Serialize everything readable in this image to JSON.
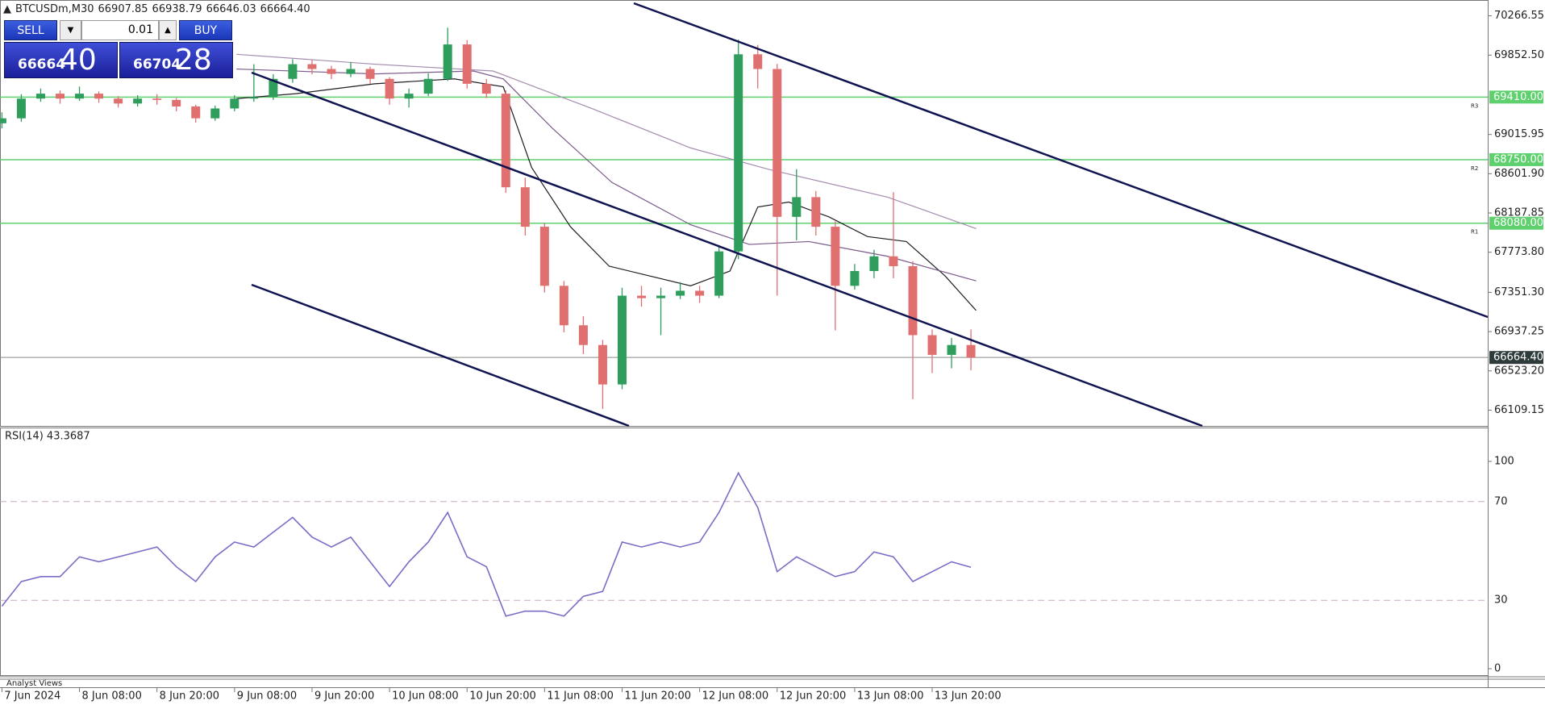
{
  "header": {
    "symbol": "BTCUSDm,M30",
    "ohlc": [
      "66907.85",
      "66938.79",
      "66646.03",
      "66664.40"
    ]
  },
  "trade_panel": {
    "sell": "SELL",
    "buy": "BUY",
    "lots": "0.01",
    "bid_main": "66664",
    "bid_big": "40",
    "ask_main": "66704",
    "ask_big": "28"
  },
  "footer_tab": "Analyst Views",
  "chart_data": [
    {
      "type": "candlestick",
      "x": [
        0,
        3,
        6,
        9,
        12,
        15,
        18,
        21,
        24,
        27,
        30,
        33,
        36,
        39,
        42,
        45,
        48,
        51,
        54,
        57,
        60,
        63,
        66,
        69,
        72,
        75,
        78,
        81,
        84,
        87,
        90,
        93,
        96,
        99,
        102,
        105,
        108,
        111,
        114,
        117,
        120,
        123,
        126,
        129,
        132,
        135,
        138,
        141,
        144,
        147,
        150
      ],
      "open": [
        69134,
        69186,
        69394,
        69446,
        69394,
        69446,
        69394,
        69342,
        69394,
        69380,
        69311,
        69186,
        69290,
        69394,
        69410,
        69602,
        69757,
        69706,
        69654,
        69706,
        69602,
        69394,
        69446,
        69602,
        69965,
        69550,
        69446,
        68459,
        68043,
        67420,
        67004,
        66796,
        66380,
        67316,
        67290,
        67316,
        67368,
        67316,
        67783,
        69861,
        69706,
        68147,
        68355,
        68043,
        67420,
        67576,
        67731,
        67627,
        66900,
        66692,
        66796
      ],
      "high": [
        69250,
        69440,
        69500,
        69480,
        69520,
        69470,
        69420,
        69430,
        69440,
        69400,
        69330,
        69320,
        69430,
        69757,
        69650,
        69810,
        69800,
        69740,
        69780,
        69730,
        69620,
        69500,
        69660,
        70142,
        70010,
        69600,
        69480,
        68560,
        68080,
        67470,
        67100,
        66850,
        67400,
        67420,
        67400,
        67460,
        67420,
        67850,
        70017,
        69960,
        69760,
        68650,
        68420,
        68100,
        67650,
        67800,
        68407,
        67680,
        66960,
        66870,
        66960
      ],
      "low": [
        69080,
        69150,
        69360,
        69340,
        69370,
        69350,
        69300,
        69310,
        69330,
        69260,
        69140,
        69160,
        69260,
        69360,
        69380,
        69560,
        69650,
        69600,
        69620,
        69550,
        69330,
        69300,
        69420,
        69580,
        69500,
        69400,
        68400,
        67950,
        67350,
        66930,
        66700,
        66121,
        66330,
        67200,
        66900,
        67280,
        67240,
        67290,
        67700,
        69500,
        67316,
        67900,
        67950,
        66950,
        67380,
        67500,
        67500,
        66225,
        66500,
        66550,
        66530
      ],
      "close": [
        69186,
        69394,
        69446,
        69394,
        69446,
        69394,
        69342,
        69394,
        69380,
        69311,
        69186,
        69290,
        69394,
        69410,
        69602,
        69757,
        69706,
        69654,
        69706,
        69602,
        69394,
        69446,
        69602,
        69965,
        69550,
        69446,
        68459,
        68043,
        67420,
        67004,
        66796,
        66380,
        67316,
        67290,
        67316,
        67368,
        67316,
        67783,
        69861,
        69706,
        68147,
        68355,
        68043,
        67420,
        67576,
        67731,
        67627,
        66900,
        66692,
        66796,
        66664.4
      ],
      "up_color": "#2f9e5c",
      "down_color": "#e07070",
      "overlays": [
        {
          "color": "#1e1e24",
          "x": [
            36.3,
            45.5,
            57.7,
            70,
            77.6,
            82,
            88,
            94,
            106.6,
            112.7,
            117,
            121.8,
            128,
            134,
            140,
            146,
            150.8
          ],
          "values": [
            69394,
            69446,
            69550,
            69602,
            69519,
            68667,
            68043,
            67627,
            67420,
            67576,
            68251,
            68303,
            68147,
            67939,
            67887,
            67524,
            67160
          ]
        },
        {
          "color": "#7a5a8a",
          "x": [
            36.3,
            57.7,
            73,
            77.6,
            85.2,
            94.4,
            106.6,
            115.7,
            124.9,
            137.1,
            150.8
          ],
          "values": [
            69706,
            69654,
            69685,
            69602,
            69082,
            68511,
            68064,
            67856,
            67887,
            67731,
            67472
          ]
        },
        {
          "color": "#a48cae",
          "x": [
            36.3,
            57.7,
            76,
            91.3,
            106.6,
            118.8,
            137.1,
            150.8
          ],
          "values": [
            69861,
            69757,
            69685,
            69290,
            68874,
            68646,
            68355,
            68023
          ]
        }
      ],
      "levels": [
        {
          "value": 69410,
          "label": "69410.00",
          "tag": "R3"
        },
        {
          "value": 68750,
          "label": "68750.00",
          "tag": "R2"
        },
        {
          "value": 68080,
          "label": "68080.00",
          "tag": "R1"
        }
      ],
      "level_color": "#5fd06e",
      "current": {
        "value": 66664.4,
        "label": "66664.40"
      },
      "xlim": [
        -0.3,
        230
      ],
      "xticks": [
        {
          "value": 0,
          "label": "7 Jun 2024"
        },
        {
          "value": 12,
          "label": "8 Jun 08:00"
        },
        {
          "value": 24,
          "label": "8 Jun 20:00"
        },
        {
          "value": 36,
          "label": "9 Jun 08:00"
        },
        {
          "value": 48,
          "label": "9 Jun 20:00"
        },
        {
          "value": 60,
          "label": "10 Jun 08:00"
        },
        {
          "value": 72,
          "label": "10 Jun 20:00"
        },
        {
          "value": 84,
          "label": "11 Jun 08:00"
        },
        {
          "value": 96,
          "label": "11 Jun 20:00"
        },
        {
          "value": 108,
          "label": "12 Jun 08:00"
        },
        {
          "value": 120,
          "label": "12 Jun 20:00"
        },
        {
          "value": 132,
          "label": "13 Jun 08:00"
        },
        {
          "value": 144,
          "label": "13 Jun 20:00"
        }
      ],
      "ylim": [
        65943,
        70402
      ],
      "yticks": [
        70266.55,
        {
          "value": 69852.5,
          "label": "69852.50"
        },
        69015.95,
        {
          "value": 68601.9,
          "label": "68601.90"
        },
        68187.85,
        {
          "value": 67773.8,
          "label": "67773.80"
        },
        {
          "value": 67351.3,
          "label": "67351.30"
        },
        66937.25,
        {
          "value": 66523.2,
          "label": "66523.20"
        },
        66109.15
      ]
    },
    {
      "type": "line",
      "title": "RSI(14) 43.3687",
      "color": "#7b6cc6",
      "x": [
        0,
        3,
        6,
        9,
        12,
        15,
        18,
        21,
        24,
        27,
        30,
        33,
        36,
        39,
        42,
        45,
        48,
        51,
        54,
        57,
        60,
        63,
        66,
        69,
        72,
        75,
        78,
        81,
        84,
        87,
        90,
        93,
        96,
        99,
        102,
        105,
        108,
        111,
        114,
        117,
        120,
        123,
        126,
        129,
        132,
        135,
        138,
        141,
        144,
        147,
        150
      ],
      "values": [
        27.6,
        37.6,
        39.6,
        39.6,
        47.6,
        45.6,
        47.6,
        49.6,
        51.6,
        43.6,
        37.6,
        47.6,
        53.6,
        51.6,
        57.6,
        63.6,
        55.6,
        51.6,
        55.6,
        45.6,
        35.6,
        45.6,
        53.6,
        65.6,
        47.6,
        43.6,
        23.6,
        25.6,
        25.6,
        23.6,
        31.6,
        33.6,
        53.6,
        51.6,
        53.6,
        51.6,
        53.6,
        65.6,
        81.6,
        67.6,
        41.6,
        47.6,
        43.6,
        39.6,
        41.6,
        49.6,
        47.6,
        37.6,
        41.6,
        45.6,
        43.3687
      ],
      "xlim": [
        -0.3,
        230
      ],
      "ylim": [
        0,
        100
      ],
      "yticks": [
        100,
        70,
        30,
        0
      ]
    }
  ]
}
